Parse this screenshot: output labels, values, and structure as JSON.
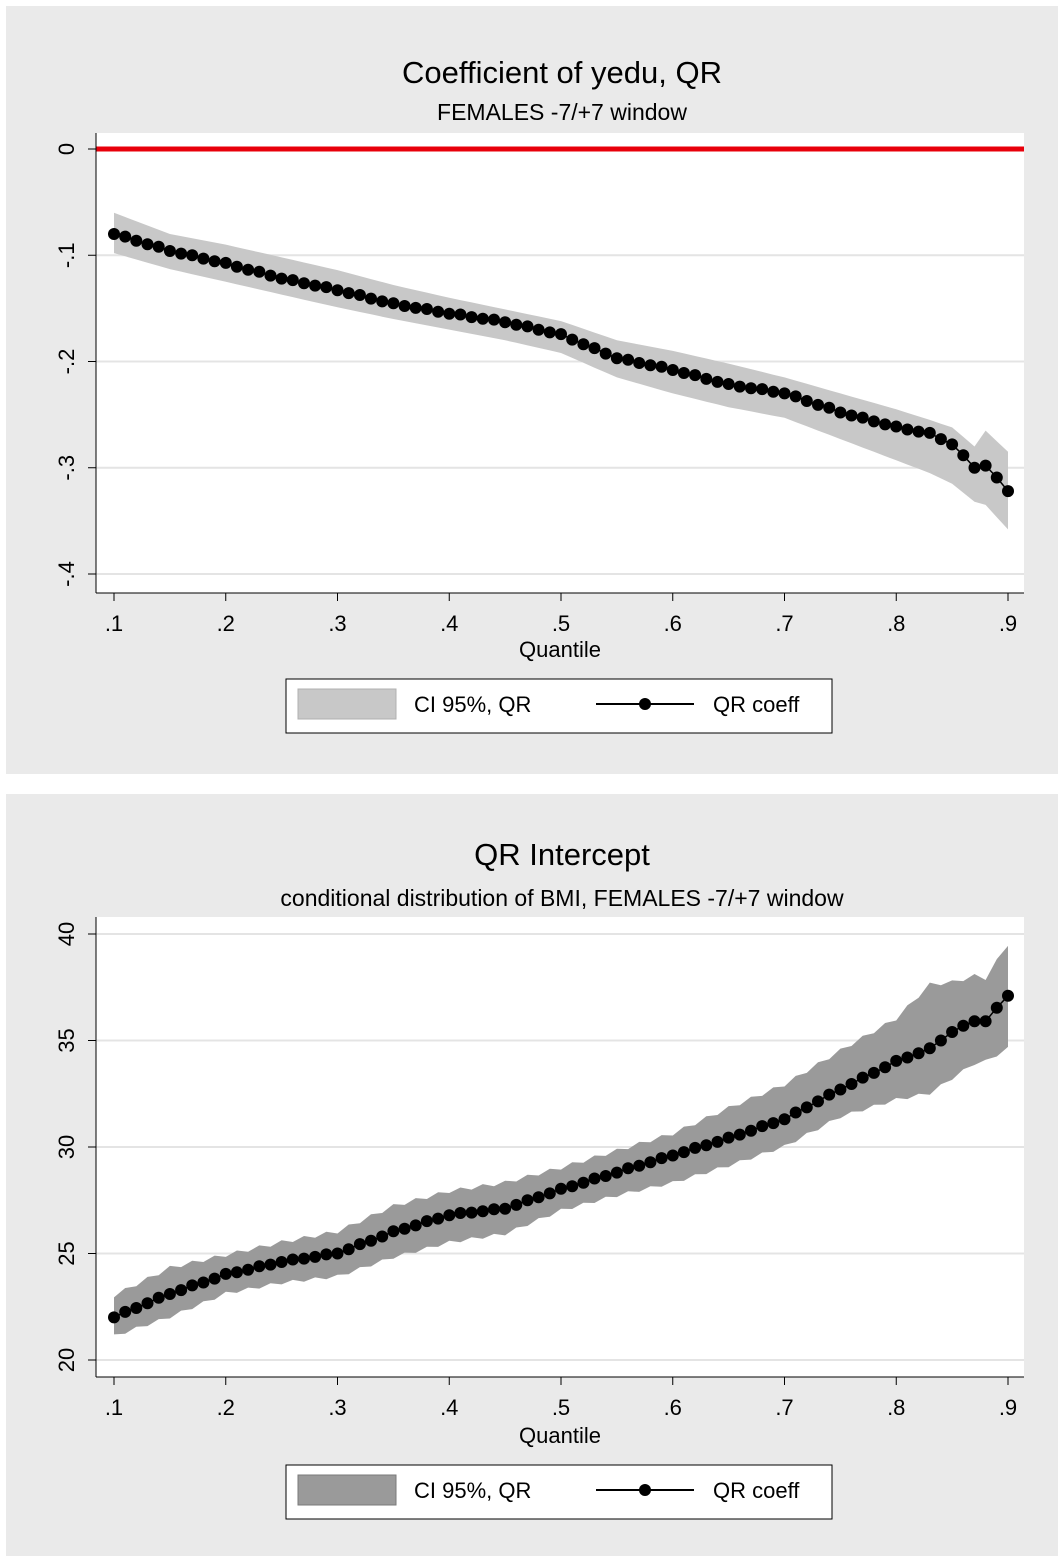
{
  "chart_data": [
    {
      "type": "line",
      "title": "Coefficient of yedu, QR",
      "subtitle": "FEMALES -7/+7 window",
      "xlabel": "Quantile",
      "ylabel": "",
      "xlim": [
        0.1,
        0.9
      ],
      "ylim": [
        -0.4,
        0
      ],
      "xticks": [
        ".1",
        ".2",
        ".3",
        ".4",
        ".5",
        ".6",
        ".7",
        ".8",
        ".9"
      ],
      "yticks": [
        "0",
        "-.1",
        "-.2",
        "-.3",
        "-.4"
      ],
      "grid": true,
      "legend_position": "bottom",
      "reference_line": {
        "y": 0,
        "color": "#e8000b"
      },
      "band_color": "#c8c8c8",
      "x_anchor": [
        0.1,
        0.15,
        0.2,
        0.25,
        0.3,
        0.35,
        0.4,
        0.45,
        0.5,
        0.55,
        0.6,
        0.65,
        0.7,
        0.75,
        0.8,
        0.83,
        0.85,
        0.87,
        0.88,
        0.9
      ],
      "series": [
        {
          "name": "CI 95%, QR",
          "role": "band",
          "upper": [
            -0.06,
            -0.08,
            -0.09,
            -0.102,
            -0.114,
            -0.128,
            -0.14,
            -0.151,
            -0.162,
            -0.18,
            -0.19,
            -0.202,
            -0.215,
            -0.23,
            -0.245,
            -0.255,
            -0.262,
            -0.28,
            -0.265,
            -0.285
          ],
          "lower": [
            -0.098,
            -0.113,
            -0.125,
            -0.137,
            -0.149,
            -0.16,
            -0.17,
            -0.18,
            -0.192,
            -0.215,
            -0.23,
            -0.243,
            -0.253,
            -0.273,
            -0.293,
            -0.305,
            -0.315,
            -0.332,
            -0.335,
            -0.358
          ]
        },
        {
          "name": "QR coeff",
          "role": "line",
          "values": [
            -0.08,
            -0.096,
            -0.108,
            -0.122,
            -0.133,
            -0.146,
            -0.155,
            -0.163,
            -0.175,
            -0.197,
            -0.208,
            -0.222,
            -0.23,
            -0.248,
            -0.262,
            -0.268,
            -0.278,
            -0.3,
            -0.298,
            -0.322
          ]
        }
      ]
    },
    {
      "type": "line",
      "title": "QR Intercept",
      "subtitle": "conditional distribution of BMI, FEMALES -7/+7 window",
      "xlabel": "Quantile",
      "ylabel": "",
      "xlim": [
        0.1,
        0.9
      ],
      "ylim": [
        20,
        40
      ],
      "xticks": [
        ".1",
        ".2",
        ".3",
        ".4",
        ".5",
        ".6",
        ".7",
        ".8",
        ".9"
      ],
      "yticks": [
        "40",
        "35",
        "30",
        "25",
        "20"
      ],
      "grid": true,
      "legend_position": "bottom",
      "band_color": "#9a9a9a",
      "x_anchor": [
        0.1,
        0.15,
        0.2,
        0.25,
        0.3,
        0.35,
        0.4,
        0.45,
        0.5,
        0.55,
        0.6,
        0.65,
        0.7,
        0.75,
        0.8,
        0.83,
        0.85,
        0.87,
        0.88,
        0.9
      ],
      "series": [
        {
          "name": "CI 95%, QR",
          "role": "band",
          "upper": [
            23.0,
            24.3,
            24.9,
            25.5,
            26.0,
            27.2,
            27.9,
            28.3,
            29.0,
            29.8,
            30.6,
            31.8,
            32.9,
            34.5,
            36.0,
            37.6,
            37.7,
            38.0,
            37.9,
            39.5
          ],
          "lower": [
            21.1,
            22.0,
            23.1,
            23.6,
            23.9,
            24.8,
            25.5,
            25.9,
            27.0,
            27.7,
            28.3,
            29.1,
            30.0,
            31.4,
            32.2,
            32.5,
            33.2,
            33.9,
            34.0,
            34.6
          ],
          "upper_jitter": 0.12,
          "lower_jitter": 0.1
        },
        {
          "name": "QR coeff",
          "role": "line",
          "values": [
            22.0,
            23.1,
            24.0,
            24.6,
            25.0,
            26.0,
            26.8,
            27.1,
            28.0,
            28.8,
            29.6,
            30.4,
            31.3,
            32.7,
            34.0,
            34.6,
            35.4,
            35.9,
            35.9,
            37.1
          ]
        }
      ]
    }
  ],
  "legend": {
    "band_label": "CI 95%, QR",
    "line_label": "QR coeff"
  }
}
